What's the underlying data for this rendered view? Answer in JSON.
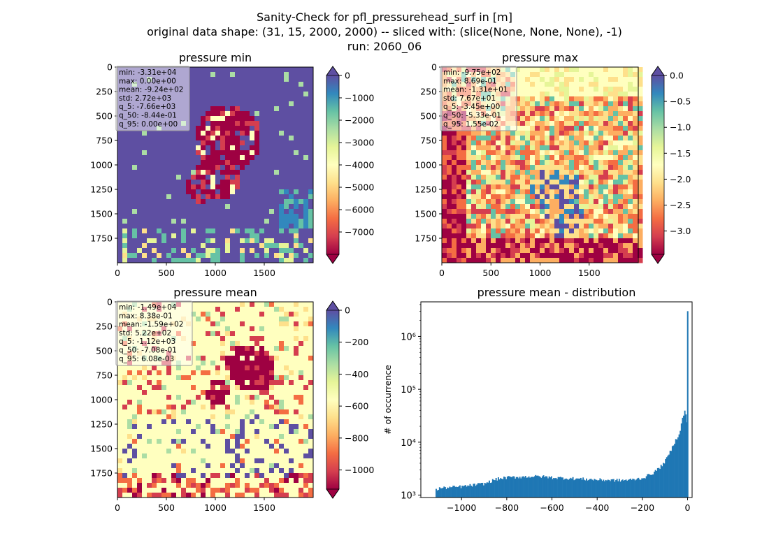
{
  "figure": {
    "title_lines": [
      "Sanity-Check for pfl_pressurehead_surf in [m]",
      "original data shape: (31, 15, 2000, 2000) -- sliced with: (slice(None, None, None), -1)",
      "run: 2060_06"
    ]
  },
  "chart_data": [
    {
      "type": "heatmap",
      "title": "pressure min",
      "x_ticks": [
        "0",
        "500",
        "1000",
        "1500"
      ],
      "y_ticks": [
        "0",
        "250",
        "500",
        "750",
        "1000",
        "1250",
        "1500",
        "1750"
      ],
      "xlim": [
        0,
        2000
      ],
      "ylim": [
        0,
        2000
      ],
      "colormap": "Spectral",
      "colorbar": {
        "range": [
          -8000,
          0
        ],
        "ticks": [
          "0",
          "−1000",
          "−2000",
          "−3000",
          "−4000",
          "−5000",
          "−6000",
          "−7000"
        ],
        "extend_max_color": "#5e4fa2",
        "extend_min_color": "#9e0142"
      },
      "stats": [
        "min: -3.31e+04",
        "max: 0.00e+00",
        "mean: -9.24e+02",
        "std: 2.72e+03",
        "q_5: -7.66e+03",
        "q_50: -8.44e-01",
        "q_95: 0.00e+00"
      ]
    },
    {
      "type": "heatmap",
      "title": "pressure max",
      "x_ticks": [
        "0",
        "500",
        "1000",
        "1500"
      ],
      "y_ticks": [
        "0",
        "250",
        "500",
        "750",
        "1000",
        "1250",
        "1500",
        "1750"
      ],
      "xlim": [
        0,
        2000
      ],
      "ylim": [
        0,
        2000
      ],
      "colormap": "Spectral",
      "colorbar": {
        "range": [
          -3.45,
          0.0
        ],
        "ticks": [
          "0.0",
          "−0.5",
          "−1.0",
          "−1.5",
          "−2.0",
          "−2.5",
          "−3.0"
        ],
        "extend_max_color": "#5e4fa2",
        "extend_min_color": "#9e0142"
      },
      "stats": [
        "min: -9.75e+02",
        "max: 8.69e-01",
        "mean: -1.31e+01",
        "std: 7.67e+01",
        "q_5: -3.45e+00",
        "q_50: -5.33e-01",
        "q_95: 1.55e-02"
      ]
    },
    {
      "type": "heatmap",
      "title": "pressure mean",
      "x_ticks": [
        "0",
        "500",
        "1000",
        "1500"
      ],
      "y_ticks": [
        "0",
        "250",
        "500",
        "750",
        "1000",
        "1250",
        "1500",
        "1750"
      ],
      "xlim": [
        0,
        2000
      ],
      "ylim": [
        0,
        2000
      ],
      "colormap": "Spectral",
      "colorbar": {
        "range": [
          -1120,
          0
        ],
        "ticks": [
          "0",
          "−200",
          "−400",
          "−600",
          "−800",
          "−1000"
        ],
        "extend_max_color": "#5e4fa2",
        "extend_min_color": "#9e0142"
      },
      "stats": [
        "min: -1.49e+04",
        "max: 8.38e-01",
        "mean: -1.59e+02",
        "std: 5.22e+02",
        "q_5: -1.12e+03",
        "q_50: -7.08e-01",
        "q_95: 6.08e-03"
      ]
    },
    {
      "type": "bar",
      "title": "pressure mean - distribution",
      "ylabel": "# of occurrence",
      "xlabel": "",
      "yscale": "log",
      "xlim": [
        -1180,
        20
      ],
      "ylim": [
        900,
        4500000
      ],
      "x_ticks": [
        "−1000",
        "−800",
        "−600",
        "−400",
        "−200",
        "0"
      ],
      "y_ticks": [
        "10³",
        "10⁴",
        "10⁵",
        "10⁶"
      ],
      "bar_color": "#1f77b4",
      "bins": [
        [
          -1115,
          1250
        ],
        [
          -1100,
          1350
        ],
        [
          -1000,
          1450
        ],
        [
          -900,
          1650
        ],
        [
          -850,
          2000
        ],
        [
          -800,
          2150
        ],
        [
          -700,
          2250
        ],
        [
          -650,
          2250
        ],
        [
          -600,
          2150
        ],
        [
          -500,
          2050
        ],
        [
          -400,
          1950
        ],
        [
          -300,
          1900
        ],
        [
          -250,
          1950
        ],
        [
          -200,
          2100
        ],
        [
          -150,
          2700
        ],
        [
          -120,
          3500
        ],
        [
          -100,
          4500
        ],
        [
          -80,
          6500
        ],
        [
          -60,
          10000
        ],
        [
          -45,
          13000
        ],
        [
          -35,
          17000
        ],
        [
          -25,
          28000
        ],
        [
          -15,
          38000
        ],
        [
          -10,
          35000
        ],
        [
          -5,
          24000
        ],
        [
          -2,
          30000
        ],
        [
          0,
          3000000
        ]
      ]
    }
  ]
}
